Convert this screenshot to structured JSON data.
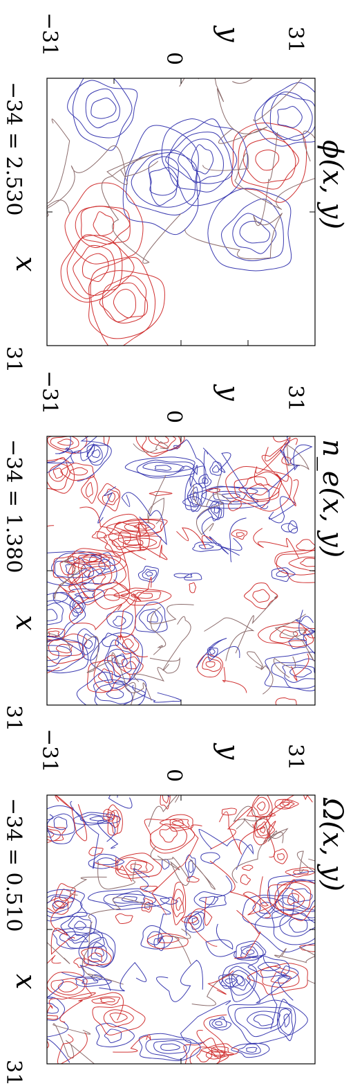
{
  "chart_data": [
    {
      "type": "contour",
      "title": "ϕ(x, y)",
      "xlabel": "x",
      "ylabel": "y",
      "x_tick_labels": [
        "−31",
        "31"
      ],
      "y_tick_labels": [
        "−31",
        "0",
        "31"
      ],
      "range_label": "−34 = 2.530",
      "xlim": [
        -31,
        31
      ],
      "ylim": [
        -31,
        31
      ],
      "colors": {
        "positive": "#d03030",
        "negative": "#3a3ab0",
        "zero": "#8a6a6a"
      },
      "extrema": [
        {
          "sign": "positive",
          "x": -12,
          "y": 20
        },
        {
          "sign": "positive",
          "x": 3,
          "y": -18
        },
        {
          "sign": "positive",
          "x": 13,
          "y": -20
        },
        {
          "sign": "positive",
          "x": 21,
          "y": -13
        },
        {
          "sign": "negative",
          "x": -24,
          "y": -18
        },
        {
          "sign": "negative",
          "x": -12,
          "y": 5
        },
        {
          "sign": "negative",
          "x": -22,
          "y": 25
        },
        {
          "sign": "negative",
          "x": 5,
          "y": 17
        },
        {
          "sign": "negative",
          "x": -7,
          "y": -4
        }
      ]
    },
    {
      "type": "contour",
      "title": "n_e(x, y)",
      "xlabel": "x",
      "ylabel": "y",
      "x_tick_labels": [
        "−31",
        "31"
      ],
      "y_tick_labels": [
        "−31",
        "0",
        "31"
      ],
      "range_label": "−34 = 1.380",
      "xlim": [
        -31,
        31
      ],
      "ylim": [
        -31,
        31
      ],
      "colors": {
        "positive": "#d03030",
        "negative": "#3a3ab0",
        "zero": "#8a6a6a"
      }
    },
    {
      "type": "contour",
      "title": "Ω(x, y)",
      "xlabel": "x",
      "ylabel": "y",
      "x_tick_labels": [
        "−31",
        "31"
      ],
      "y_tick_labels": [
        "−31",
        "0",
        "31"
      ],
      "range_label": "−34 = 0.510",
      "xlim": [
        -31,
        31
      ],
      "ylim": [
        -31,
        31
      ],
      "colors": {
        "positive": "#d03030",
        "negative": "#3a3ab0",
        "zero": "#8a6a6a"
      }
    }
  ]
}
